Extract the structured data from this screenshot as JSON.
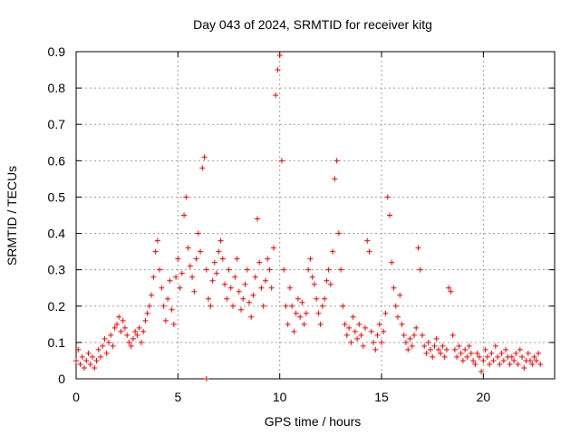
{
  "chart_data": {
    "type": "scatter",
    "title": "Day 043 of 2024, SRMTID for receiver kitg",
    "xlabel": "GPS time / hours",
    "ylabel": "SRMTID / TECUs",
    "xlim": [
      0,
      23.5
    ],
    "ylim": [
      0,
      0.9
    ],
    "xticks": [
      0,
      5,
      10,
      15,
      20
    ],
    "yticks": [
      0,
      0.1,
      0.2,
      0.3,
      0.4,
      0.5,
      0.6,
      0.7,
      0.8,
      0.9
    ],
    "xtick_labels": [
      "0",
      "5",
      "10",
      "15",
      "20"
    ],
    "ytick_labels": [
      "0",
      "0.1",
      "0.2",
      "0.3",
      "0.4",
      "0.5",
      "0.6",
      "0.7",
      "0.8",
      "0.9"
    ],
    "grid": true,
    "marker": "+",
    "series": [
      {
        "name": "SRMTID",
        "color": "#ff0000",
        "points": [
          [
            0.0,
            0.05
          ],
          [
            0.1,
            0.08
          ],
          [
            0.2,
            0.04
          ],
          [
            0.3,
            0.06
          ],
          [
            0.4,
            0.03
          ],
          [
            0.5,
            0.05
          ],
          [
            0.6,
            0.07
          ],
          [
            0.7,
            0.04
          ],
          [
            0.8,
            0.06
          ],
          [
            0.9,
            0.03
          ],
          [
            1.0,
            0.05
          ],
          [
            1.1,
            0.08
          ],
          [
            1.2,
            0.06
          ],
          [
            1.3,
            0.09
          ],
          [
            1.4,
            0.11
          ],
          [
            1.5,
            0.07
          ],
          [
            1.6,
            0.1
          ],
          [
            1.7,
            0.12
          ],
          [
            1.8,
            0.09
          ],
          [
            1.9,
            0.14
          ],
          [
            2.0,
            0.15
          ],
          [
            2.1,
            0.17
          ],
          [
            2.2,
            0.13
          ],
          [
            2.3,
            0.16
          ],
          [
            2.4,
            0.14
          ],
          [
            2.5,
            0.12
          ],
          [
            2.6,
            0.1
          ],
          [
            2.7,
            0.09
          ],
          [
            2.8,
            0.11
          ],
          [
            2.9,
            0.13
          ],
          [
            3.0,
            0.12
          ],
          [
            3.1,
            0.14
          ],
          [
            3.2,
            0.1
          ],
          [
            3.3,
            0.13
          ],
          [
            3.4,
            0.16
          ],
          [
            3.5,
            0.18
          ],
          [
            3.6,
            0.2
          ],
          [
            3.7,
            0.23
          ],
          [
            3.8,
            0.28
          ],
          [
            3.9,
            0.35
          ],
          [
            4.0,
            0.38
          ],
          [
            4.1,
            0.3
          ],
          [
            4.2,
            0.25
          ],
          [
            4.3,
            0.2
          ],
          [
            4.4,
            0.16
          ],
          [
            4.5,
            0.22
          ],
          [
            4.6,
            0.27
          ],
          [
            4.7,
            0.19
          ],
          [
            4.8,
            0.15
          ],
          [
            4.9,
            0.28
          ],
          [
            5.0,
            0.33
          ],
          [
            5.1,
            0.25
          ],
          [
            5.2,
            0.29
          ],
          [
            5.3,
            0.45
          ],
          [
            5.4,
            0.5
          ],
          [
            5.5,
            0.36
          ],
          [
            5.6,
            0.31
          ],
          [
            5.7,
            0.28
          ],
          [
            5.8,
            0.24
          ],
          [
            5.9,
            0.33
          ],
          [
            6.0,
            0.4
          ],
          [
            6.1,
            0.35
          ],
          [
            6.2,
            0.58
          ],
          [
            6.3,
            0.61
          ],
          [
            6.4,
            0.3
          ],
          [
            6.5,
            0.22
          ],
          [
            6.6,
            0.2
          ],
          [
            6.7,
            0.27
          ],
          [
            6.8,
            0.32
          ],
          [
            6.9,
            0.29
          ],
          [
            7.0,
            0.35
          ],
          [
            7.1,
            0.38
          ],
          [
            7.2,
            0.33
          ],
          [
            7.3,
            0.26
          ],
          [
            7.4,
            0.22
          ],
          [
            7.5,
            0.3
          ],
          [
            7.6,
            0.25
          ],
          [
            7.7,
            0.2
          ],
          [
            7.8,
            0.28
          ],
          [
            7.9,
            0.33
          ],
          [
            8.0,
            0.24
          ],
          [
            8.1,
            0.19
          ],
          [
            8.2,
            0.22
          ],
          [
            8.3,
            0.26
          ],
          [
            8.4,
            0.3
          ],
          [
            8.5,
            0.21
          ],
          [
            8.6,
            0.17
          ],
          [
            8.7,
            0.23
          ],
          [
            8.8,
            0.28
          ],
          [
            8.9,
            0.44
          ],
          [
            9.0,
            0.32
          ],
          [
            9.1,
            0.25
          ],
          [
            9.2,
            0.2
          ],
          [
            9.3,
            0.27
          ],
          [
            9.4,
            0.33
          ],
          [
            9.5,
            0.3
          ],
          [
            9.6,
            0.25
          ],
          [
            9.7,
            0.36
          ],
          [
            9.8,
            0.78
          ],
          [
            9.9,
            0.85
          ],
          [
            10.0,
            0.89
          ],
          [
            10.1,
            0.6
          ],
          [
            10.2,
            0.3
          ],
          [
            10.3,
            0.2
          ],
          [
            10.4,
            0.15
          ],
          [
            10.5,
            0.25
          ],
          [
            10.6,
            0.2
          ],
          [
            10.7,
            0.13
          ],
          [
            10.8,
            0.18
          ],
          [
            10.9,
            0.22
          ],
          [
            11.0,
            0.17
          ],
          [
            11.1,
            0.21
          ],
          [
            11.2,
            0.15
          ],
          [
            11.3,
            0.18
          ],
          [
            11.4,
            0.3
          ],
          [
            11.5,
            0.33
          ],
          [
            11.6,
            0.28
          ],
          [
            11.7,
            0.26
          ],
          [
            11.8,
            0.22
          ],
          [
            11.9,
            0.18
          ],
          [
            12.0,
            0.15
          ],
          [
            12.1,
            0.2
          ],
          [
            12.2,
            0.22
          ],
          [
            12.3,
            0.27
          ],
          [
            12.4,
            0.3
          ],
          [
            12.5,
            0.26
          ],
          [
            12.6,
            0.35
          ],
          [
            12.7,
            0.55
          ],
          [
            12.8,
            0.6
          ],
          [
            12.9,
            0.4
          ],
          [
            13.0,
            0.3
          ],
          [
            13.1,
            0.2
          ],
          [
            13.2,
            0.15
          ],
          [
            13.3,
            0.12
          ],
          [
            13.4,
            0.14
          ],
          [
            13.5,
            0.1
          ],
          [
            13.6,
            0.17
          ],
          [
            13.7,
            0.13
          ],
          [
            13.8,
            0.11
          ],
          [
            13.9,
            0.15
          ],
          [
            14.0,
            0.12
          ],
          [
            14.1,
            0.09
          ],
          [
            14.2,
            0.14
          ],
          [
            14.3,
            0.38
          ],
          [
            14.4,
            0.35
          ],
          [
            14.5,
            0.13
          ],
          [
            14.6,
            0.1
          ],
          [
            14.7,
            0.08
          ],
          [
            14.8,
            0.12
          ],
          [
            14.9,
            0.15
          ],
          [
            15.0,
            0.1
          ],
          [
            15.1,
            0.13
          ],
          [
            15.2,
            0.18
          ],
          [
            15.3,
            0.5
          ],
          [
            15.4,
            0.45
          ],
          [
            15.5,
            0.32
          ],
          [
            15.6,
            0.25
          ],
          [
            15.7,
            0.2
          ],
          [
            15.8,
            0.17
          ],
          [
            15.9,
            0.23
          ],
          [
            16.0,
            0.15
          ],
          [
            16.1,
            0.12
          ],
          [
            16.2,
            0.1
          ],
          [
            16.3,
            0.08
          ],
          [
            16.4,
            0.11
          ],
          [
            16.5,
            0.09
          ],
          [
            16.6,
            0.12
          ],
          [
            16.7,
            0.14
          ],
          [
            16.8,
            0.36
          ],
          [
            16.9,
            0.3
          ],
          [
            17.0,
            0.12
          ],
          [
            17.1,
            0.09
          ],
          [
            17.2,
            0.07
          ],
          [
            17.3,
            0.1
          ],
          [
            17.4,
            0.08
          ],
          [
            17.5,
            0.06
          ],
          [
            17.6,
            0.09
          ],
          [
            17.7,
            0.11
          ],
          [
            17.8,
            0.08
          ],
          [
            17.9,
            0.07
          ],
          [
            18.0,
            0.09
          ],
          [
            18.1,
            0.06
          ],
          [
            18.2,
            0.08
          ],
          [
            18.3,
            0.25
          ],
          [
            18.4,
            0.24
          ],
          [
            18.5,
            0.12
          ],
          [
            18.6,
            0.08
          ],
          [
            18.7,
            0.06
          ],
          [
            18.8,
            0.09
          ],
          [
            18.9,
            0.07
          ],
          [
            19.0,
            0.05
          ],
          [
            19.1,
            0.08
          ],
          [
            19.2,
            0.06
          ],
          [
            19.3,
            0.09
          ],
          [
            19.4,
            0.07
          ],
          [
            19.5,
            0.05
          ],
          [
            19.6,
            0.04
          ],
          [
            19.7,
            0.07
          ],
          [
            19.8,
            0.06
          ],
          [
            19.9,
            0.02
          ],
          [
            20.0,
            0.05
          ],
          [
            20.1,
            0.08
          ],
          [
            20.2,
            0.06
          ],
          [
            20.3,
            0.04
          ],
          [
            20.4,
            0.07
          ],
          [
            20.5,
            0.05
          ],
          [
            20.6,
            0.09
          ],
          [
            20.7,
            0.06
          ],
          [
            20.8,
            0.04
          ],
          [
            20.9,
            0.07
          ],
          [
            21.0,
            0.05
          ],
          [
            21.1,
            0.08
          ],
          [
            21.2,
            0.06
          ],
          [
            21.3,
            0.04
          ],
          [
            21.4,
            0.06
          ],
          [
            21.5,
            0.05
          ],
          [
            21.6,
            0.07
          ],
          [
            21.7,
            0.04
          ],
          [
            21.8,
            0.08
          ],
          [
            21.9,
            0.06
          ],
          [
            22.0,
            0.03
          ],
          [
            22.1,
            0.05
          ],
          [
            22.2,
            0.07
          ],
          [
            22.3,
            0.05
          ],
          [
            22.4,
            0.04
          ],
          [
            22.5,
            0.06
          ],
          [
            22.6,
            0.05
          ],
          [
            22.7,
            0.07
          ],
          [
            22.8,
            0.04
          ],
          [
            6.4,
            0.0
          ]
        ]
      }
    ]
  }
}
